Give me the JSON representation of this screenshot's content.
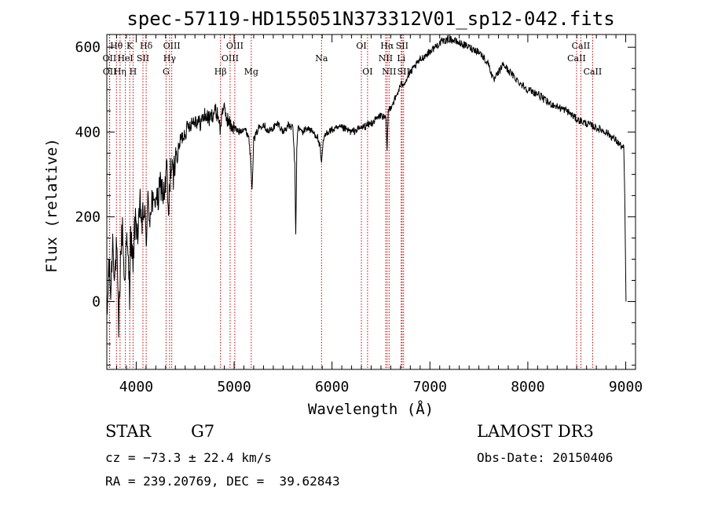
{
  "chart_data": {
    "type": "line",
    "title": "spec-57119-HD155051N373312V01_sp12-042.fits",
    "xlabel": "Wavelength (Å)",
    "ylabel": "Flux (relative)",
    "xlim": [
      3700,
      9100
    ],
    "ylim": [
      -160,
      630
    ],
    "xticks": [
      4000,
      5000,
      6000,
      7000,
      8000,
      9000
    ],
    "yticks": [
      0,
      200,
      400,
      600
    ],
    "series": [
      {
        "name": "flux",
        "x": [
          3700,
          3720,
          3740,
          3760,
          3780,
          3800,
          3820,
          3840,
          3860,
          3880,
          3900,
          3920,
          3933,
          3940,
          3960,
          3968,
          3980,
          4000,
          4020,
          4040,
          4060,
          4080,
          4102,
          4120,
          4140,
          4160,
          4180,
          4200,
          4220,
          4250,
          4280,
          4300,
          4310,
          4330,
          4350,
          4380,
          4400,
          4420,
          4450,
          4500,
          4550,
          4600,
          4650,
          4700,
          4750,
          4800,
          4840,
          4861,
          4880,
          4900,
          4950,
          5000,
          5050,
          5100,
          5150,
          5170,
          5183,
          5200,
          5250,
          5300,
          5350,
          5400,
          5450,
          5500,
          5550,
          5600,
          5620,
          5630,
          5640,
          5650,
          5700,
          5750,
          5800,
          5850,
          5880,
          5893,
          5910,
          5950,
          6000,
          6100,
          6200,
          6300,
          6400,
          6450,
          6500,
          6550,
          6563,
          6575,
          6600,
          6650,
          6700,
          6750,
          6800,
          6900,
          7000,
          7100,
          7200,
          7300,
          7400,
          7500,
          7600,
          7650,
          7700,
          7750,
          7800,
          7900,
          8000,
          8100,
          8200,
          8300,
          8400,
          8500,
          8600,
          8700,
          8800,
          8900,
          8980,
          8990,
          9000,
          9003
        ],
        "values": [
          -60,
          90,
          20,
          150,
          60,
          130,
          -70,
          100,
          180,
          40,
          140,
          90,
          20,
          160,
          110,
          60,
          170,
          190,
          150,
          230,
          180,
          220,
          150,
          230,
          200,
          250,
          210,
          260,
          230,
          280,
          250,
          270,
          330,
          190,
          320,
          290,
          350,
          340,
          380,
          400,
          420,
          430,
          420,
          440,
          430,
          450,
          440,
          400,
          460,
          450,
          420,
          410,
          400,
          410,
          390,
          330,
          270,
          380,
          410,
          420,
          400,
          410,
          420,
          400,
          415,
          410,
          320,
          150,
          360,
          410,
          400,
          410,
          400,
          390,
          360,
          320,
          380,
          400,
          405,
          410,
          400,
          410,
          420,
          430,
          440,
          430,
          360,
          450,
          460,
          480,
          510,
          520,
          540,
          570,
          590,
          610,
          620,
          610,
          600,
          590,
          560,
          520,
          540,
          560,
          545,
          520,
          500,
          490,
          470,
          460,
          450,
          430,
          420,
          410,
          400,
          380,
          360,
          250,
          60,
          0
        ]
      }
    ],
    "lines": [
      {
        "label": "OII",
        "x": 3727,
        "row": 2
      },
      {
        "label": "OII",
        "x": 3729,
        "row": 3
      },
      {
        "label": "Hθ",
        "x": 3798,
        "row": 1
      },
      {
        "label": "Hη",
        "x": 3835,
        "row": 3
      },
      {
        "label": "HeI",
        "x": 3889,
        "row": 2
      },
      {
        "label": "K",
        "x": 3934,
        "row": 1
      },
      {
        "label": "H",
        "x": 3968,
        "row": 3
      },
      {
        "label": "SII",
        "x": 4069,
        "row": 2
      },
      {
        "label": "Hδ",
        "x": 4102,
        "row": 1
      },
      {
        "label": "G",
        "x": 4305,
        "row": 3
      },
      {
        "label": "Hγ",
        "x": 4341,
        "row": 2
      },
      {
        "label": "OIII",
        "x": 4363,
        "row": 1
      },
      {
        "label": "Hβ",
        "x": 4861,
        "row": 3
      },
      {
        "label": "OIII",
        "x": 4959,
        "row": 2
      },
      {
        "label": "OIII",
        "x": 5007,
        "row": 1
      },
      {
        "label": "Mg",
        "x": 5175,
        "row": 3
      },
      {
        "label": "Na",
        "x": 5893,
        "row": 2
      },
      {
        "label": "OI",
        "x": 6300,
        "row": 1
      },
      {
        "label": "OI",
        "x": 6363,
        "row": 3
      },
      {
        "label": "NII",
        "x": 6548,
        "row": 2
      },
      {
        "label": "Hα",
        "x": 6563,
        "row": 1
      },
      {
        "label": "NII",
        "x": 6583,
        "row": 3
      },
      {
        "label": "Li",
        "x": 6707,
        "row": 2
      },
      {
        "label": "SII",
        "x": 6716,
        "row": 1
      },
      {
        "label": "SII",
        "x": 6731,
        "row": 3
      },
      {
        "label": "CaII",
        "x": 8498,
        "row": 2
      },
      {
        "label": "CaII",
        "x": 8542,
        "row": 1
      },
      {
        "label": "CaII",
        "x": 8662,
        "row": 3
      }
    ],
    "colors": {
      "line_marker": "#cc0000",
      "spectrum": "#000000"
    }
  },
  "info": {
    "object_class": "STAR",
    "subclass": "G7",
    "survey": "LAMOST DR3",
    "cz": "cz = −73.3 ± 22.4 km/s",
    "obs_date": "Obs-Date: 20150406",
    "coords": "RA = 239.20769, DEC =  39.62843"
  }
}
